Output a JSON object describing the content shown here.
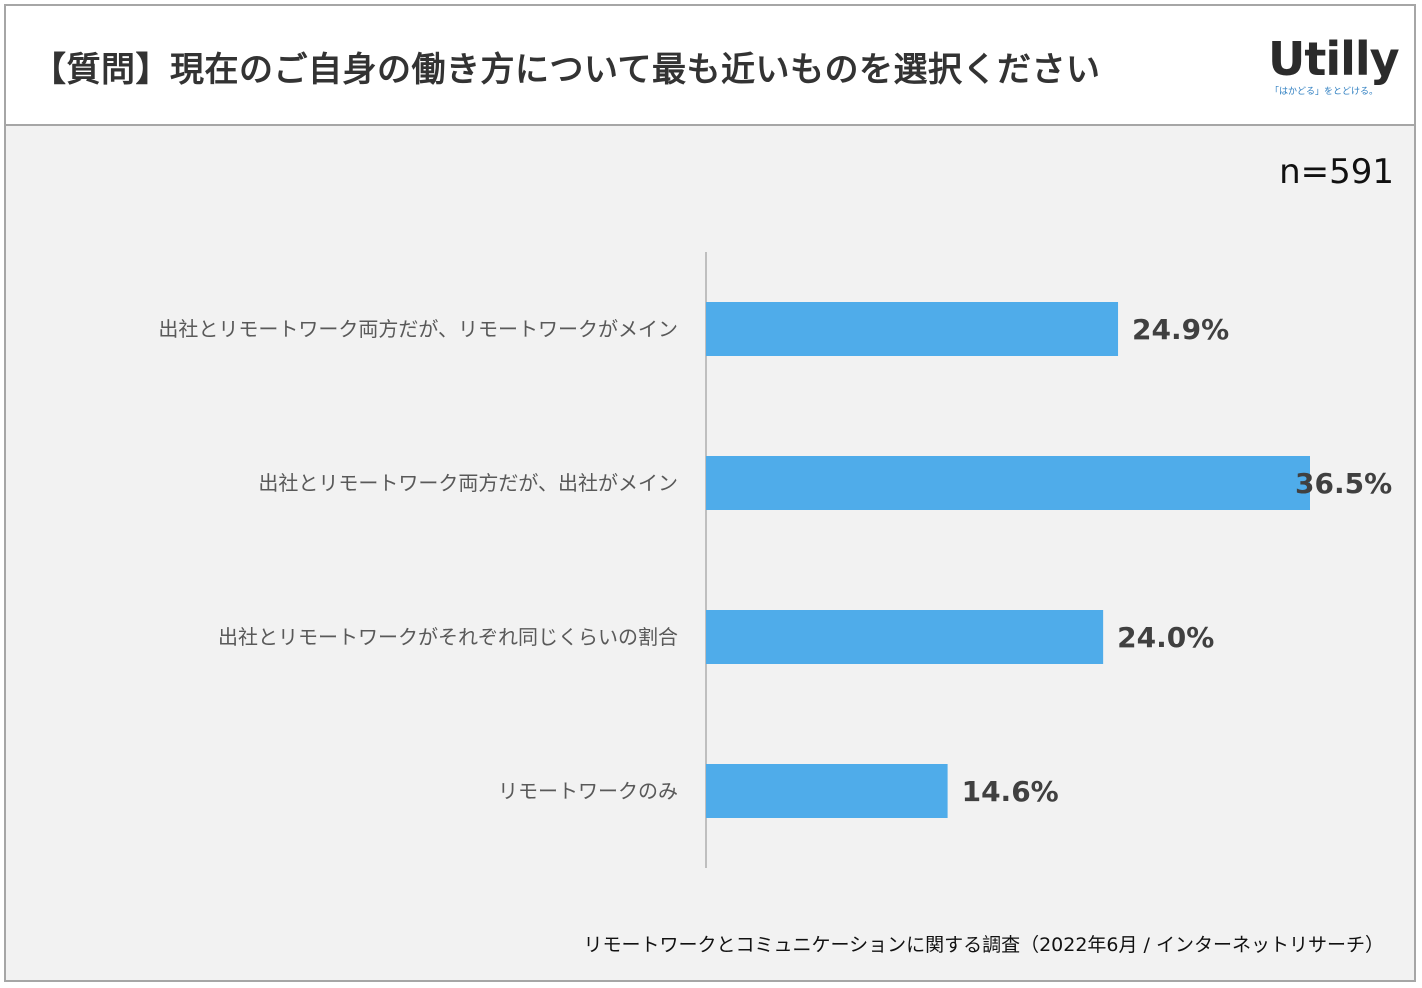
{
  "header": {
    "title": "【質問】現在のご自身の働き方について最も近いものを選択ください",
    "logo_text": "Utilly",
    "logo_tagline": "「はかどる」をとどける。"
  },
  "sample_size": "n=591",
  "source": "リモートワークとコミュニケーションに関する調査（2022年6月 / インターネットリサーチ）",
  "colors": {
    "bar": "#4facea",
    "background": "#f2f2f2",
    "axis": "#bfbfbf"
  },
  "chart_data": {
    "type": "bar",
    "orientation": "horizontal",
    "categories": [
      "出社とリモートワーク両方だが、リモートワークがメイン",
      "出社とリモートワーク両方だが、出社がメイン",
      "出社とリモートワークがそれぞれ同じくらいの割合",
      "リモートワークのみ"
    ],
    "values": [
      24.9,
      36.5,
      24.0,
      14.6
    ],
    "data_labels": [
      "24.9%",
      "36.5%",
      "24.0%",
      "14.6%"
    ],
    "unit": "%",
    "xlim": [
      0,
      36.5
    ],
    "grid": false,
    "legend": "none"
  }
}
